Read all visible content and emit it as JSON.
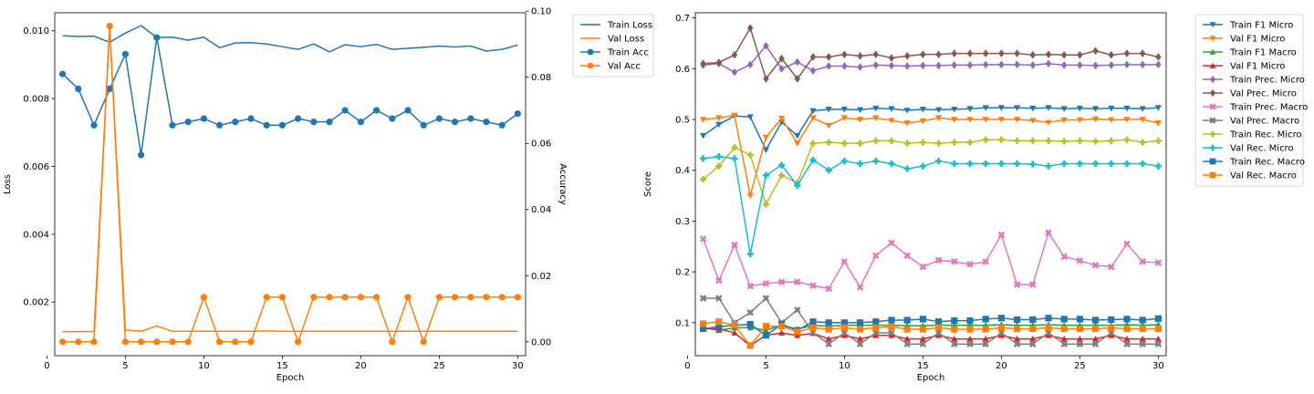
{
  "chart_data": [
    {
      "type": "line",
      "xlabel": "Epoch",
      "ylabel": "Loss",
      "ylabel_right": "Accuracy",
      "x": [
        1,
        2,
        3,
        4,
        5,
        6,
        7,
        8,
        9,
        10,
        11,
        12,
        13,
        14,
        15,
        16,
        17,
        18,
        19,
        20,
        21,
        22,
        23,
        24,
        25,
        26,
        27,
        28,
        29,
        30
      ],
      "xlim": [
        0.5,
        30.5
      ],
      "ylim": [
        0.00042,
        0.01053
      ],
      "ylim_right": [
        -0.0042,
        0.0995
      ],
      "xticks": [
        0,
        5,
        10,
        15,
        20,
        25,
        30
      ],
      "yticks": [
        "0.002",
        "0.004",
        "0.006",
        "0.008",
        "0.010"
      ],
      "yticks_right": [
        "0.00",
        "0.02",
        "0.04",
        "0.06",
        "0.08",
        "0.10"
      ],
      "legend": "outside-top-right",
      "series": [
        {
          "name": "Train Loss",
          "axis": "left",
          "color": "#1f77b4",
          "marker": "none",
          "values": [
            0.00985,
            0.00983,
            0.00984,
            0.00966,
            0.00993,
            0.01015,
            0.0098,
            0.00981,
            0.00972,
            0.00981,
            0.0095,
            0.00964,
            0.00965,
            0.00961,
            0.00953,
            0.00945,
            0.00961,
            0.00938,
            0.00959,
            0.00953,
            0.0096,
            0.00945,
            0.00948,
            0.00951,
            0.00955,
            0.00952,
            0.00955,
            0.0094,
            0.00945,
            0.00958
          ]
        },
        {
          "name": "Val Loss",
          "axis": "left",
          "color": "#ff7f0e",
          "marker": "none",
          "values": [
            0.00113,
            0.00113,
            0.00113,
            0.01015,
            0.00118,
            0.00114,
            0.0013,
            0.00114,
            0.00114,
            0.00114,
            0.00114,
            0.00114,
            0.00114,
            0.00115,
            0.00114,
            0.00114,
            0.00114,
            0.00114,
            0.00114,
            0.00114,
            0.00114,
            0.00114,
            0.00114,
            0.00114,
            0.00114,
            0.00114,
            0.00114,
            0.00114,
            0.00114,
            0.00114
          ]
        },
        {
          "name": "Train Acc",
          "axis": "right",
          "color": "#1f77b4",
          "marker": "circle",
          "values": [
            0.081,
            0.0765,
            0.0655,
            0.0765,
            0.087,
            0.0565,
            0.092,
            0.0655,
            0.0665,
            0.0675,
            0.0655,
            0.0665,
            0.0675,
            0.0655,
            0.0655,
            0.0675,
            0.0665,
            0.0665,
            0.07,
            0.0665,
            0.07,
            0.0675,
            0.07,
            0.0655,
            0.0675,
            0.0665,
            0.0675,
            0.0665,
            0.0655,
            0.069
          ]
        },
        {
          "name": "Val Acc",
          "axis": "right",
          "color": "#ff7f0e",
          "marker": "circle",
          "values": [
            0.0,
            0.0,
            0.0,
            0.0955,
            0.0,
            0.0,
            0.0,
            0.0,
            0.0,
            0.0135,
            0.0,
            0.0,
            0.0,
            0.0135,
            0.0135,
            0.0,
            0.0135,
            0.0135,
            0.0135,
            0.0135,
            0.0135,
            0.0,
            0.0135,
            0.0,
            0.0135,
            0.0135,
            0.0135,
            0.0135,
            0.0135,
            0.0135
          ]
        }
      ]
    },
    {
      "type": "line",
      "xlabel": "Epoch",
      "ylabel": "Score",
      "x": [
        1,
        2,
        3,
        4,
        5,
        6,
        7,
        8,
        9,
        10,
        11,
        12,
        13,
        14,
        15,
        16,
        17,
        18,
        19,
        20,
        21,
        22,
        23,
        24,
        25,
        26,
        27,
        28,
        29,
        30
      ],
      "xlim": [
        0.5,
        30.5
      ],
      "ylim": [
        0.035,
        0.71
      ],
      "xticks": [
        0,
        5,
        10,
        15,
        20,
        25,
        30
      ],
      "yticks": [
        "0.1",
        "0.2",
        "0.3",
        "0.4",
        "0.5",
        "0.6",
        "0.7"
      ],
      "legend": "outside-top-right",
      "series": [
        {
          "name": "Train F1 Micro",
          "color": "#1f77b4",
          "marker": "tri-down",
          "values": [
            0.468,
            0.49,
            0.507,
            0.505,
            0.44,
            0.495,
            0.468,
            0.517,
            0.52,
            0.52,
            0.519,
            0.522,
            0.521,
            0.518,
            0.52,
            0.519,
            0.52,
            0.521,
            0.523,
            0.523,
            0.523,
            0.522,
            0.523,
            0.521,
            0.522,
            0.521,
            0.522,
            0.522,
            0.521,
            0.523
          ]
        },
        {
          "name": "Val F1 Micro",
          "color": "#ff7f0e",
          "marker": "tri-down",
          "values": [
            0.5,
            0.503,
            0.508,
            0.35,
            0.465,
            0.502,
            0.453,
            0.503,
            0.488,
            0.503,
            0.5,
            0.503,
            0.498,
            0.493,
            0.497,
            0.503,
            0.5,
            0.5,
            0.5,
            0.5,
            0.5,
            0.498,
            0.494,
            0.499,
            0.499,
            0.501,
            0.499,
            0.5,
            0.5,
            0.493
          ]
        },
        {
          "name": "Train F1 Macro",
          "color": "#2ca02c",
          "marker": "tri-up",
          "values": [
            0.09,
            0.085,
            0.09,
            0.09,
            0.085,
            0.095,
            0.087,
            0.095,
            0.093,
            0.095,
            0.095,
            0.095,
            0.095,
            0.094,
            0.094,
            0.095,
            0.095,
            0.095,
            0.095,
            0.096,
            0.095,
            0.095,
            0.096,
            0.095,
            0.095,
            0.095,
            0.095,
            0.096,
            0.095,
            0.096
          ]
        },
        {
          "name": "Val F1 Micro",
          "color": "#d62728",
          "marker": "tri-up",
          "values": [
            0.088,
            0.088,
            0.08,
            0.055,
            0.075,
            0.08,
            0.075,
            0.079,
            0.068,
            0.075,
            0.068,
            0.075,
            0.075,
            0.068,
            0.068,
            0.075,
            0.068,
            0.068,
            0.068,
            0.075,
            0.068,
            0.068,
            0.075,
            0.068,
            0.068,
            0.068,
            0.075,
            0.068,
            0.068,
            0.068
          ]
        },
        {
          "name": "Train Prec. Micro",
          "color": "#9467bd",
          "marker": "diamond",
          "values": [
            0.607,
            0.61,
            0.593,
            0.608,
            0.645,
            0.6,
            0.613,
            0.596,
            0.605,
            0.605,
            0.603,
            0.607,
            0.606,
            0.605,
            0.606,
            0.606,
            0.607,
            0.607,
            0.608,
            0.608,
            0.608,
            0.607,
            0.61,
            0.607,
            0.607,
            0.606,
            0.607,
            0.608,
            0.608,
            0.608
          ]
        },
        {
          "name": "Val Prec. Micro",
          "color": "#8c564b",
          "marker": "diamond",
          "values": [
            0.61,
            0.612,
            0.627,
            0.68,
            0.58,
            0.62,
            0.58,
            0.623,
            0.623,
            0.628,
            0.625,
            0.628,
            0.621,
            0.625,
            0.628,
            0.628,
            0.63,
            0.63,
            0.63,
            0.63,
            0.63,
            0.627,
            0.628,
            0.627,
            0.627,
            0.635,
            0.627,
            0.63,
            0.63,
            0.623
          ]
        },
        {
          "name": "Train Prec. Macro",
          "color": "#e377c2",
          "marker": "x",
          "values": [
            0.265,
            0.183,
            0.253,
            0.172,
            0.177,
            0.18,
            0.18,
            0.173,
            0.167,
            0.22,
            0.17,
            0.232,
            0.257,
            0.232,
            0.21,
            0.223,
            0.22,
            0.215,
            0.22,
            0.273,
            0.175,
            0.175,
            0.277,
            0.23,
            0.222,
            0.213,
            0.21,
            0.255,
            0.22,
            0.218
          ]
        },
        {
          "name": "Val Prec. Macro",
          "color": "#7f7f7f",
          "marker": "x",
          "values": [
            0.148,
            0.148,
            0.1,
            0.12,
            0.148,
            0.1,
            0.125,
            0.08,
            0.058,
            0.08,
            0.058,
            0.08,
            0.08,
            0.058,
            0.058,
            0.08,
            0.058,
            0.058,
            0.058,
            0.08,
            0.058,
            0.058,
            0.08,
            0.058,
            0.058,
            0.058,
            0.08,
            0.058,
            0.058,
            0.058
          ]
        },
        {
          "name": "Train Rec. Micro",
          "color": "#bcbd22",
          "marker": "plus",
          "values": [
            0.382,
            0.408,
            0.445,
            0.43,
            0.333,
            0.39,
            0.375,
            0.453,
            0.455,
            0.453,
            0.453,
            0.458,
            0.458,
            0.453,
            0.455,
            0.453,
            0.455,
            0.455,
            0.46,
            0.46,
            0.458,
            0.458,
            0.458,
            0.457,
            0.458,
            0.457,
            0.458,
            0.46,
            0.455,
            0.458
          ]
        },
        {
          "name": "Val Rec. Micro",
          "color": "#17becf",
          "marker": "plus",
          "values": [
            0.423,
            0.427,
            0.423,
            0.235,
            0.39,
            0.41,
            0.37,
            0.42,
            0.4,
            0.418,
            0.413,
            0.418,
            0.413,
            0.403,
            0.408,
            0.418,
            0.413,
            0.413,
            0.413,
            0.413,
            0.413,
            0.412,
            0.408,
            0.413,
            0.413,
            0.413,
            0.413,
            0.413,
            0.413,
            0.408
          ]
        },
        {
          "name": "Train Rec. Macro",
          "color": "#1f77b4",
          "marker": "square",
          "values": [
            0.088,
            0.092,
            0.095,
            0.097,
            0.075,
            0.097,
            0.085,
            0.102,
            0.1,
            0.1,
            0.1,
            0.102,
            0.105,
            0.105,
            0.107,
            0.102,
            0.104,
            0.104,
            0.107,
            0.109,
            0.106,
            0.106,
            0.109,
            0.107,
            0.107,
            0.105,
            0.106,
            0.107,
            0.105,
            0.108
          ]
        },
        {
          "name": "Val Rec. Macro",
          "color": "#ff7f0e",
          "marker": "square",
          "values": [
            0.098,
            0.102,
            0.095,
            0.055,
            0.093,
            0.093,
            0.082,
            0.09,
            0.087,
            0.09,
            0.087,
            0.09,
            0.092,
            0.087,
            0.087,
            0.09,
            0.087,
            0.087,
            0.087,
            0.09,
            0.088,
            0.088,
            0.09,
            0.088,
            0.088,
            0.088,
            0.09,
            0.088,
            0.088,
            0.088
          ]
        }
      ]
    }
  ]
}
